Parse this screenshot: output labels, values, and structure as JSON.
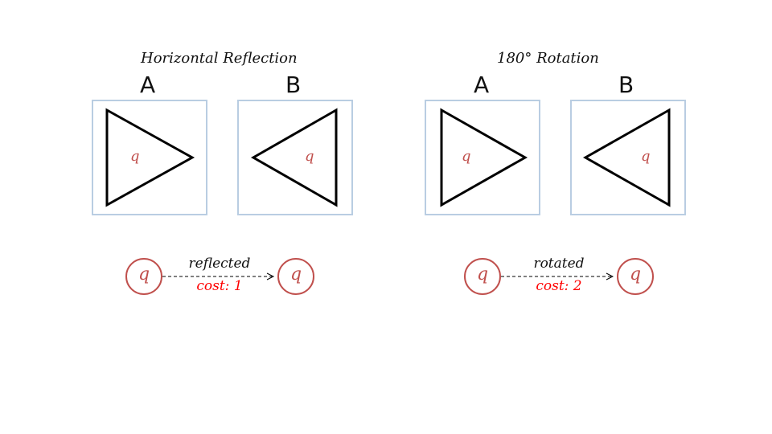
{
  "panels": [
    {
      "title": "Horizontal Reflection",
      "box_a_label": "A",
      "box_b_label": "B",
      "glyph": "q",
      "edge_label": "reflected",
      "cost_label": "cost: 1"
    },
    {
      "title": "180° Rotation",
      "box_a_label": "A",
      "box_b_label": "B",
      "glyph": "q",
      "edge_label": "rotated",
      "cost_label": "cost: 2"
    }
  ],
  "colors": {
    "box_border": "#b9cde2",
    "glyph": "#c0504d",
    "node_border": "#c0504d",
    "cost_text": "#ff0000",
    "triangle_stroke": "#000000"
  }
}
